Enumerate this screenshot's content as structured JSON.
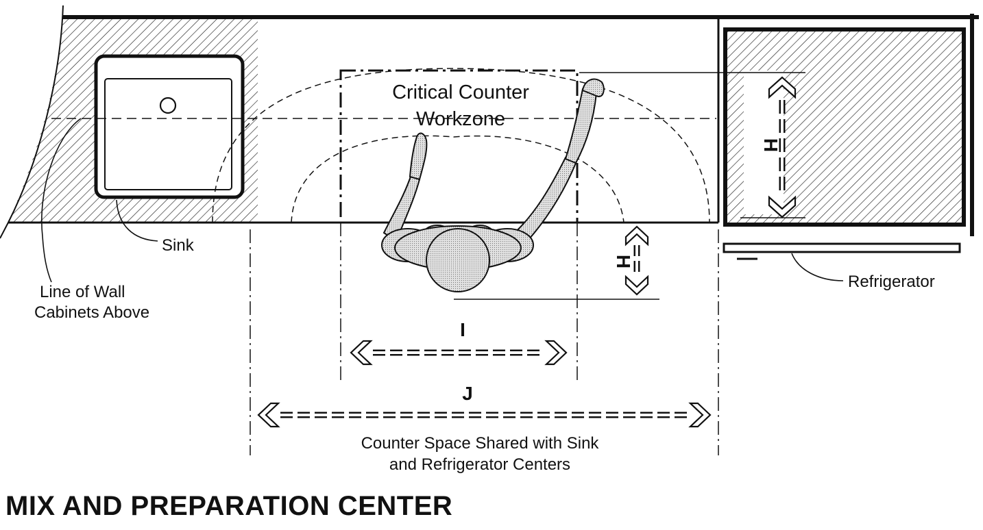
{
  "title": "MIX AND PREPARATION CENTER",
  "labels": {
    "zone_line1": "Critical Counter",
    "zone_line2": "Workzone",
    "sink": "Sink",
    "wall_line1": "Line of Wall",
    "wall_line2": "Cabinets Above",
    "refrigerator": "Refrigerator",
    "shared_line1": "Counter Space Shared with Sink",
    "shared_line2": "and Refrigerator Centers"
  },
  "dimensions": {
    "h_refrigerator": "H",
    "h_body": "H",
    "i": "I",
    "j": "J"
  },
  "colors": {
    "ink": "#111111",
    "background": "#ffffff",
    "figure_fill": "#d9d9d9"
  }
}
